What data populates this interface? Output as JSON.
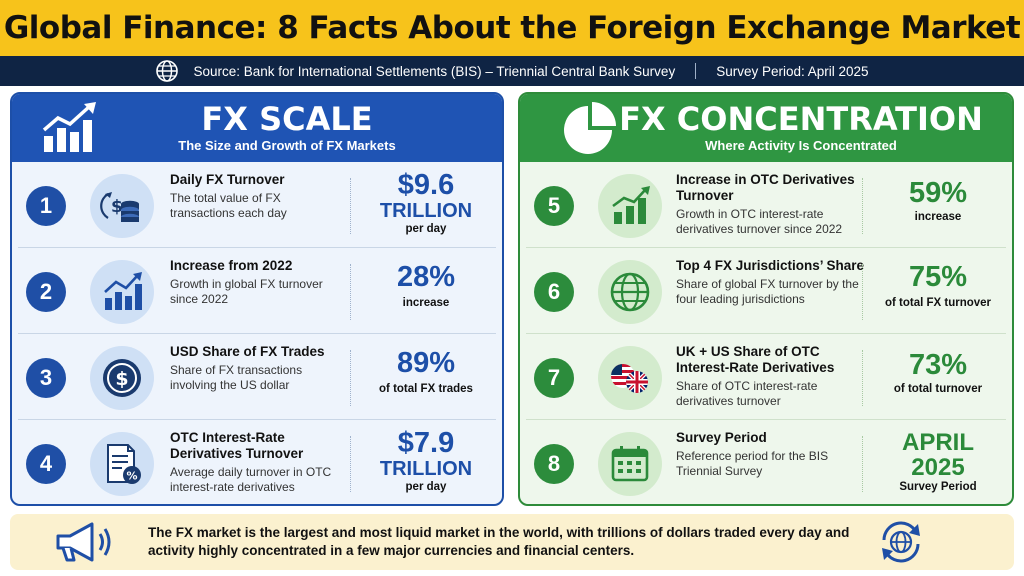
{
  "title": "Global Finance: 8 Facts About the Foreign Exchange Market",
  "source_bar": {
    "icon": "globe-icon",
    "source": "Source: Bank for International Settlements (BIS) – Triennial Central Bank Survey",
    "period": "Survey Period: April 2025"
  },
  "left_panel": {
    "icon": "growth-chart-icon",
    "title": "FX SCALE",
    "subtitle": "The Size and Growth of FX Markets",
    "color": "#1f54b4",
    "facts": [
      {
        "number": "1",
        "icon": "dollar-coins-icon",
        "title": "Daily FX Turnover",
        "desc": "The total value of FX transactions each day",
        "value": "$9.6",
        "value2": "TRILLION",
        "unit": "per day"
      },
      {
        "number": "2",
        "icon": "growth-chart-icon",
        "title": "Increase from 2022",
        "desc": "Growth in global FX turnover since 2022",
        "value": "28%",
        "value2": "",
        "unit": "increase"
      },
      {
        "number": "3",
        "icon": "dollar-icon",
        "title": "USD Share of FX Trades",
        "desc": "Share of FX transactions involving the US dollar",
        "value": "89%",
        "value2": "",
        "unit": "of total FX trades"
      },
      {
        "number": "4",
        "icon": "document-percent-icon",
        "title": "OTC Interest-Rate Derivatives Turnover",
        "desc": "Average daily turnover in OTC interest-rate derivatives",
        "value": "$7.9",
        "value2": "TRILLION",
        "unit": "per day"
      }
    ]
  },
  "right_panel": {
    "icon": "pie-chart-icon",
    "title": "FX CONCENTRATION",
    "subtitle": "Where Activity Is Concentrated",
    "color": "#2f9642",
    "facts": [
      {
        "number": "5",
        "icon": "growth-chart-icon",
        "title": "Increase in OTC Derivatives Turnover",
        "desc": "Growth in OTC interest-rate derivatives turnover since 2022",
        "value": "59%",
        "value2": "",
        "unit": "increase"
      },
      {
        "number": "6",
        "icon": "globe-icon",
        "title": "Top 4 FX Jurisdictions’ Share",
        "desc": "Share of global FX turnover by the four leading jurisdictions",
        "value": "75%",
        "value2": "",
        "unit": "of total FX turnover"
      },
      {
        "number": "7",
        "icon": "us-uk-flags-icon",
        "title": "UK + US Share of OTC Interest-Rate Derivatives",
        "desc": "Share of OTC interest-rate derivatives turnover",
        "value": "73%",
        "value2": "",
        "unit": "of total turnover"
      },
      {
        "number": "8",
        "icon": "calendar-icon",
        "title": "Survey Period",
        "desc": "Reference period for the BIS Triennial Survey",
        "value": "APRIL",
        "value2": "2025",
        "unit": "Survey Period"
      }
    ]
  },
  "footer": {
    "left_icon": "megaphone-icon",
    "right_icon": "globe-cycle-icon",
    "text": "The FX market is the largest and most liquid market in the world, with trillions of dollars traded every day and activity highly concentrated in a few major currencies and financial centers."
  }
}
